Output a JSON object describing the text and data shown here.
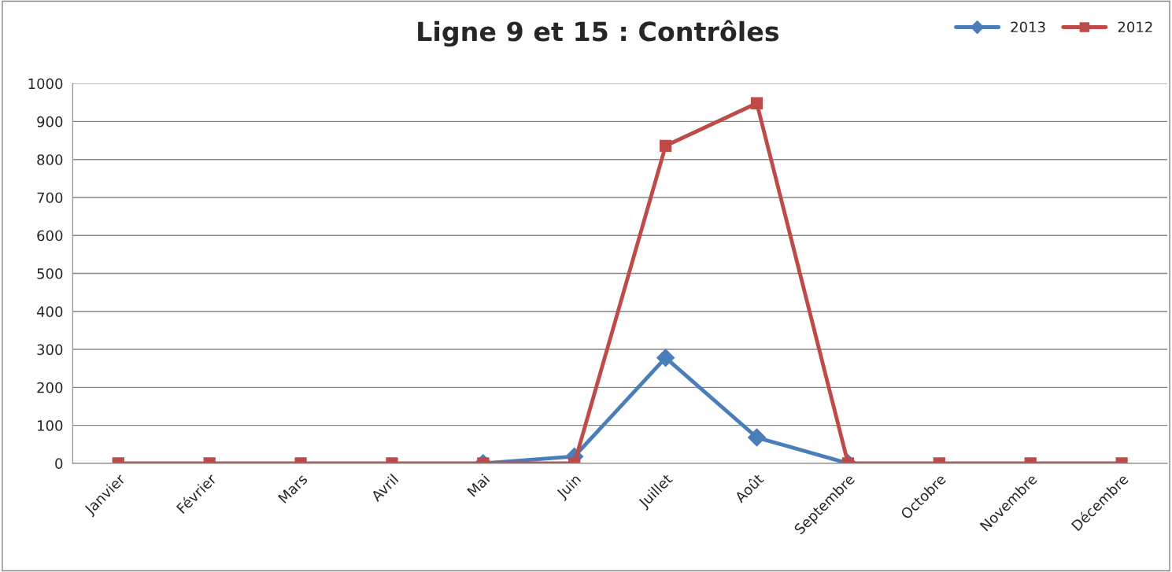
{
  "chart_data": {
    "type": "line",
    "title": "Ligne 9 et 15 : Contrôles",
    "categories": [
      "Janvier",
      "Février",
      "Mars",
      "Avril",
      "Mai",
      "Juin",
      "Juillet",
      "Août",
      "Septembre",
      "Octobre",
      "Novembre",
      "Décembre"
    ],
    "series": [
      {
        "name": "2013",
        "color": "#4a7ebb",
        "marker": "diamond",
        "values": [
          null,
          null,
          null,
          null,
          0,
          18,
          278,
          68,
          0,
          null,
          null,
          null
        ]
      },
      {
        "name": "2012",
        "color": "#be4b48",
        "marker": "square",
        "values": [
          0,
          0,
          0,
          0,
          0,
          0,
          836,
          948,
          0,
          0,
          0,
          0
        ]
      }
    ],
    "ylim": [
      0,
      1000
    ],
    "yticks": [
      0,
      100,
      200,
      300,
      400,
      500,
      600,
      700,
      800,
      900,
      1000
    ],
    "grid": "y",
    "legend": "top right",
    "line_style": "solid"
  }
}
